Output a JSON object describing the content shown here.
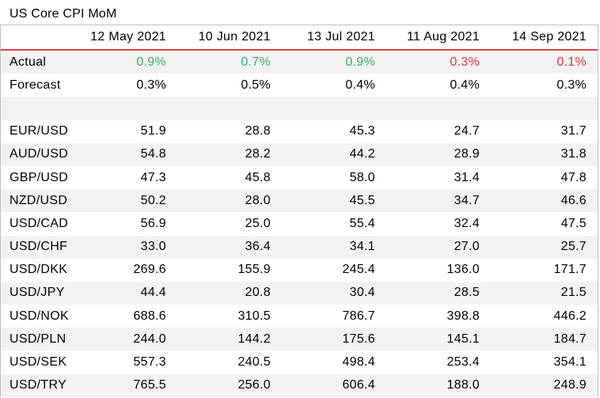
{
  "title": "US Core CPI MoM",
  "chart_data": {
    "type": "table",
    "title": "US Core CPI MoM",
    "columns": [
      "12 May 2021",
      "10 Jun 2021",
      "13 Jul 2021",
      "11 Aug 2021",
      "14 Sep 2021"
    ],
    "actual": {
      "label": "Actual",
      "values": [
        "0.9%",
        "0.7%",
        "0.9%",
        "0.3%",
        "0.1%"
      ],
      "status": [
        "beat",
        "beat",
        "beat",
        "miss",
        "miss"
      ]
    },
    "forecast": {
      "label": "Forecast",
      "values": [
        "0.3%",
        "0.5%",
        "0.4%",
        "0.4%",
        "0.3%"
      ]
    },
    "rows": [
      {
        "label": "EUR/USD",
        "values": [
          51.9,
          28.8,
          45.3,
          24.7,
          31.7
        ]
      },
      {
        "label": "AUD/USD",
        "values": [
          54.8,
          28.2,
          44.2,
          28.9,
          31.8
        ]
      },
      {
        "label": "GBP/USD",
        "values": [
          47.3,
          45.8,
          58.0,
          31.4,
          47.8
        ]
      },
      {
        "label": "NZD/USD",
        "values": [
          50.2,
          28.0,
          45.5,
          34.7,
          46.6
        ]
      },
      {
        "label": "USD/CAD",
        "values": [
          56.9,
          25.0,
          55.4,
          32.4,
          47.5
        ]
      },
      {
        "label": "USD/CHF",
        "values": [
          33.0,
          36.4,
          34.1,
          27.0,
          25.7
        ]
      },
      {
        "label": "USD/DKK",
        "values": [
          269.6,
          155.9,
          245.4,
          136.0,
          171.7
        ]
      },
      {
        "label": "USD/JPY",
        "values": [
          44.4,
          20.8,
          30.4,
          28.5,
          21.5
        ]
      },
      {
        "label": "USD/NOK",
        "values": [
          688.6,
          310.5,
          786.7,
          398.8,
          446.2
        ]
      },
      {
        "label": "USD/PLN",
        "values": [
          244.0,
          144.2,
          175.6,
          145.1,
          184.7
        ]
      },
      {
        "label": "USD/SEK",
        "values": [
          557.3,
          240.5,
          498.4,
          253.4,
          354.1
        ]
      },
      {
        "label": "USD/TRY",
        "values": [
          765.5,
          256.0,
          606.4,
          188.0,
          248.9
        ]
      }
    ]
  },
  "colors": {
    "beat": "#3daa74",
    "miss": "#e0323c",
    "header_rule": "#e04050",
    "band": "#f2f2f2"
  }
}
